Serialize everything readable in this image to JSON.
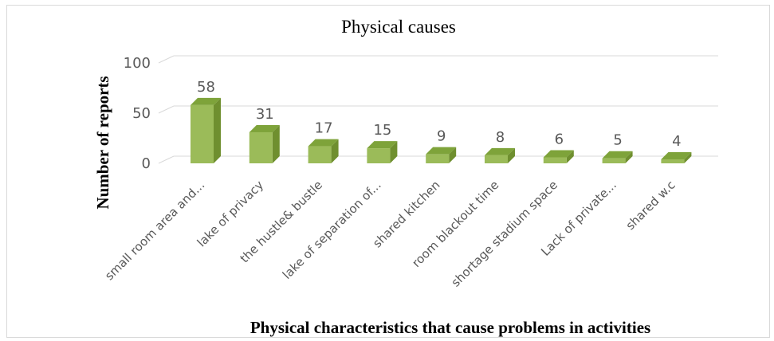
{
  "chart_data": {
    "type": "bar",
    "title": "Physical causes",
    "xlabel": "Physical characteristics that cause problems in activities",
    "ylabel": "Number of reports",
    "ylim": [
      0,
      100
    ],
    "yticks": [
      0,
      50,
      100
    ],
    "grid": true,
    "legend": "none",
    "style": "3d-column",
    "categories": [
      "small room area and...",
      "lake of privacy",
      "the hustle& bustle",
      "lake of separation of...",
      "shared kitchen",
      "room blackout time",
      "shortage stadium space",
      "Lack of private...",
      "shared w.c"
    ],
    "values": [
      58,
      31,
      17,
      15,
      9,
      8,
      6,
      5,
      4
    ],
    "colors": {
      "front": "#9bbb59",
      "side": "#6f8f2f",
      "top": "#7ea33a",
      "grid": "#d9d9d9"
    }
  }
}
